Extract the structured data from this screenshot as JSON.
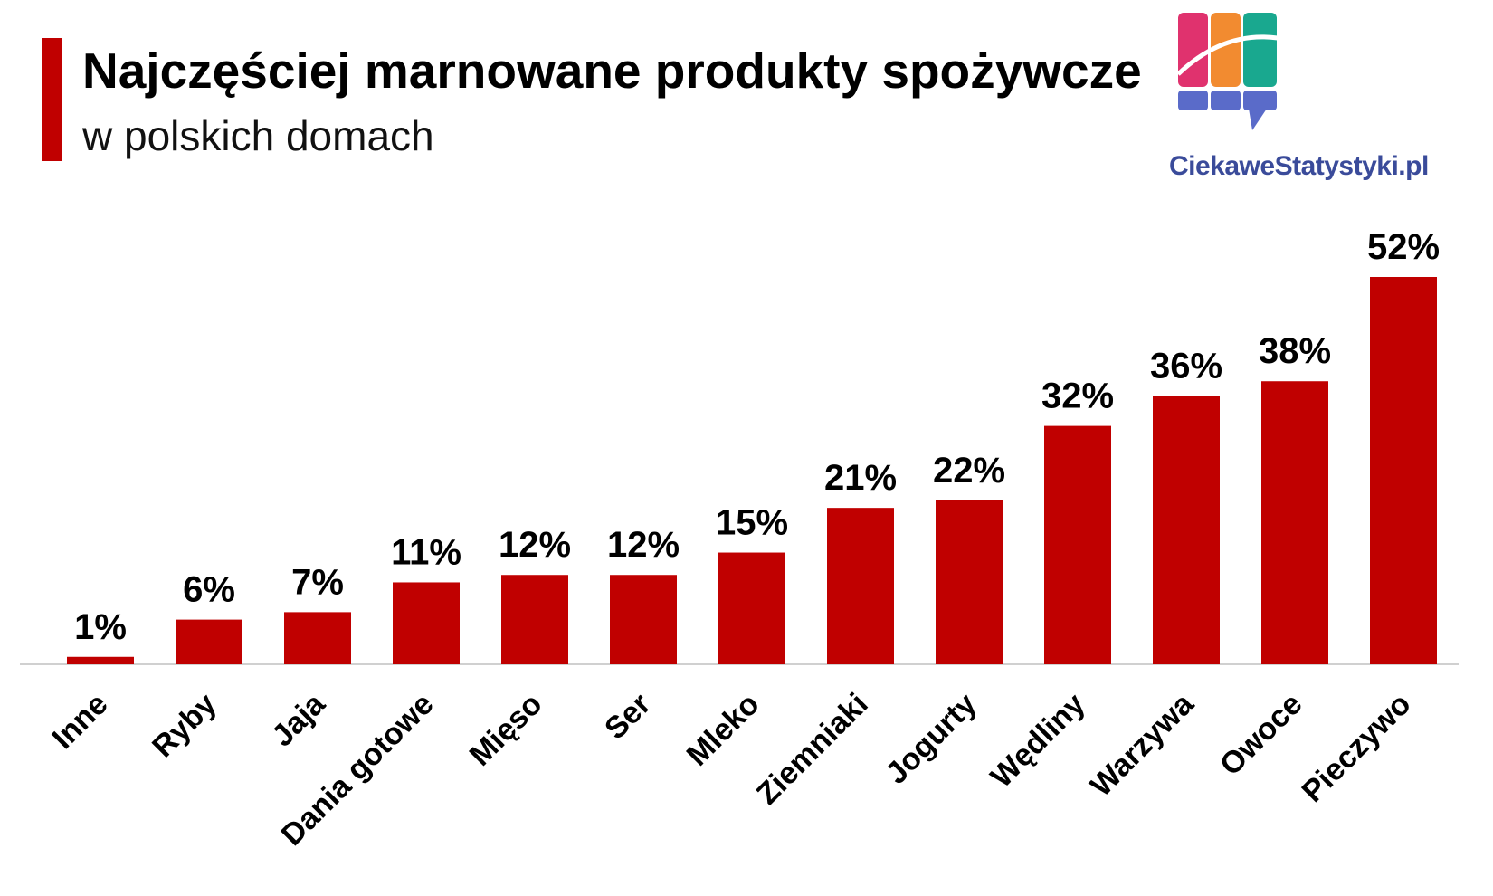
{
  "header": {
    "title": "Najczęściej marnowane produkty spożywcze",
    "subtitle": "w polskich domach"
  },
  "logo": {
    "text": "CiekaweStatystyki.pl",
    "colors": [
      "#e0326e",
      "#f28b30",
      "#19a88f",
      "#5a6bc9"
    ]
  },
  "colors": {
    "accent": "#c00000",
    "bar": "#c00000",
    "axis": "#d0d0d0"
  },
  "chart_data": {
    "type": "bar",
    "title": "Najczęściej marnowane produkty spożywcze",
    "subtitle": "w polskich domach",
    "categories": [
      "Inne",
      "Ryby",
      "Jaja",
      "Dania gotowe",
      "Mięso",
      "Ser",
      "Mleko",
      "Ziemniaki",
      "Jogurty",
      "Wędliny",
      "Warzywa",
      "Owoce",
      "Pieczywo"
    ],
    "values": [
      1,
      6,
      7,
      11,
      12,
      12,
      15,
      21,
      22,
      32,
      36,
      38,
      52
    ],
    "value_labels": [
      "1%",
      "6%",
      "7%",
      "11%",
      "12%",
      "12%",
      "15%",
      "21%",
      "22%",
      "32%",
      "36%",
      "38%",
      "52%"
    ],
    "unit": "%",
    "ylim": [
      0,
      52
    ],
    "grid": false,
    "legend": "none"
  }
}
